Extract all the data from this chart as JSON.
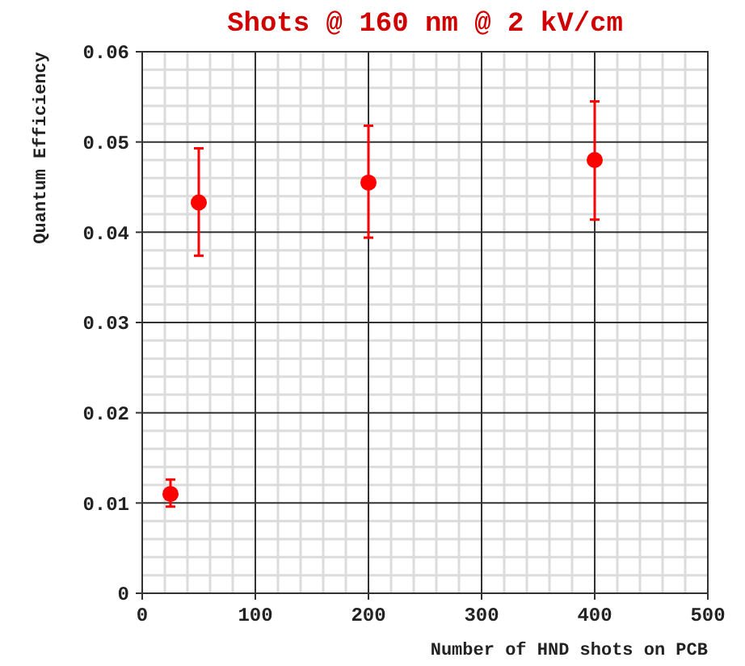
{
  "chart_data": {
    "type": "scatter",
    "title": "Shots @ 160 nm @ 2 kV/cm",
    "xlabel": "Number of HND shots on PCB",
    "ylabel": "Quantum Efficiency",
    "x": [
      25,
      50,
      200,
      400
    ],
    "series": [
      {
        "color": "#ff0000",
        "values": [
          0.011,
          0.0433,
          0.0455,
          0.048
        ],
        "errors": [
          [
            0.0096,
            0.0126
          ],
          [
            0.0374,
            0.0493
          ],
          [
            0.0394,
            0.0518
          ],
          [
            0.0414,
            0.0545
          ]
        ]
      }
    ],
    "xlim": [
      0,
      500
    ],
    "xticks": [
      0,
      100,
      200,
      300,
      400,
      500
    ],
    "ylim": [
      0,
      0.06
    ],
    "yticks": [
      {
        "value": 0,
        "label": "0"
      },
      {
        "value": 0.01,
        "label": "0.01"
      },
      {
        "value": 0.02,
        "label": "0.02"
      },
      {
        "value": 0.03,
        "label": "0.03"
      },
      {
        "value": 0.04,
        "label": "0.04"
      },
      {
        "value": 0.05,
        "label": "0.05"
      },
      {
        "value": 0.06,
        "label": "0.06"
      }
    ],
    "grid": true,
    "marker": "circle"
  }
}
